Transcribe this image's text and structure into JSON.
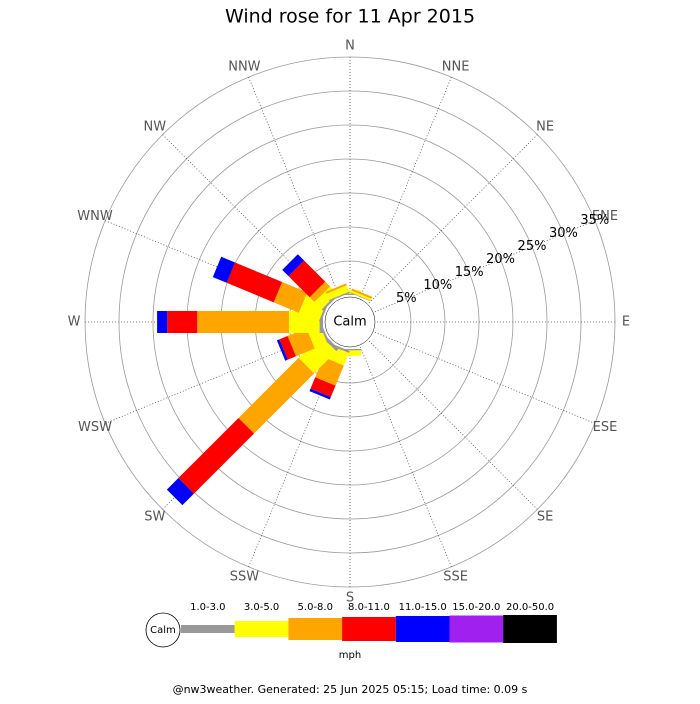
{
  "chart_data": {
    "type": "wind_rose",
    "title": "Wind rose for 11 Apr 2015",
    "categories": [
      "N",
      "NNE",
      "NE",
      "ENE",
      "E",
      "ESE",
      "SE",
      "SSE",
      "S",
      "SSW",
      "SW",
      "WSW",
      "W",
      "WNW",
      "NW",
      "NNW"
    ],
    "calm_label": "Calm",
    "rlim": [
      0,
      35
    ],
    "rticks": [
      {
        "value": 5,
        "label": "5%"
      },
      {
        "value": 10,
        "label": "10%"
      },
      {
        "value": 15,
        "label": "15%"
      },
      {
        "value": 20,
        "label": "20%"
      },
      {
        "value": 25,
        "label": "25%"
      },
      {
        "value": 30,
        "label": "30%"
      },
      {
        "value": 35,
        "label": "35%"
      }
    ],
    "series": [
      {
        "name": "1.0-3.0",
        "color": "#999999",
        "values": [
          0.2,
          0.1,
          0,
          0,
          0,
          0,
          0,
          0,
          0.2,
          0.3,
          0.5,
          0.3,
          0.5,
          0.3,
          0.3,
          0.2
        ]
      },
      {
        "name": "3.0-5.0",
        "color": "#ffff00",
        "values": [
          0.5,
          0.3,
          0,
          0,
          0,
          0,
          0,
          0,
          0.8,
          2,
          4.6,
          2,
          4.5,
          3.2,
          1.5,
          1
        ]
      },
      {
        "name": "5.0-8.0",
        "color": "#ffa500",
        "values": [
          0,
          0.3,
          0,
          0,
          0,
          0,
          0,
          0,
          0,
          3.2,
          12.5,
          3,
          13.5,
          4,
          1,
          0.3
        ]
      },
      {
        "name": "8.0-11.0",
        "color": "#ff0000",
        "values": [
          0,
          0,
          0,
          0,
          0,
          0,
          0,
          0,
          0,
          1.8,
          12.5,
          1.3,
          4.4,
          7.5,
          4.4,
          0
        ]
      },
      {
        "name": "11.0-15.0",
        "color": "#0000ff",
        "values": [
          0,
          0,
          0,
          0,
          0,
          0,
          0,
          0,
          0,
          0.4,
          2.4,
          0.4,
          1.5,
          2.2,
          1.3,
          0
        ]
      },
      {
        "name": "15.0-20.0",
        "color": "#a020f0",
        "values": [
          0,
          0,
          0,
          0,
          0,
          0,
          0,
          0,
          0,
          0,
          0,
          0,
          0,
          0,
          0,
          0
        ]
      },
      {
        "name": "20.0-50.0",
        "color": "#000000",
        "values": [
          0,
          0,
          0,
          0,
          0,
          0,
          0,
          0,
          0,
          0,
          0,
          0,
          0,
          0,
          0,
          0
        ]
      }
    ],
    "legend_unit": "mph",
    "footer": "@nw3weather. Generated: 25 Jun 2025 05:15; Load time: 0.09 s"
  }
}
